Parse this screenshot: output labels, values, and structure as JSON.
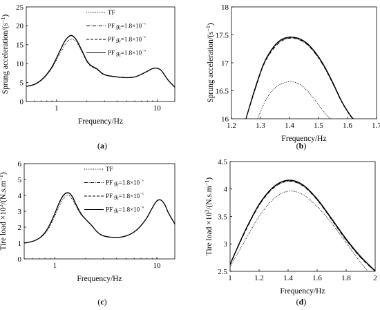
{
  "colors": {
    "line": "#000000",
    "background": "#ffffff"
  },
  "chart_data": [
    {
      "id": "a",
      "panel_label": "(a)",
      "type": "line",
      "xscale": "log",
      "xlim": [
        0.5,
        15
      ],
      "ylim": [
        0,
        25
      ],
      "xticks": [
        1,
        10
      ],
      "xticklabels": [
        "1",
        "10"
      ],
      "yticks": [
        0,
        5,
        10,
        15,
        20,
        25
      ],
      "yticklabels": [
        "0",
        "5",
        "10",
        "15",
        "20",
        "25"
      ],
      "xlabel": "Frequency/Hz",
      "ylabel": "Sprung acceleration/(s⁻¹)",
      "legend": "top-right",
      "series": [
        {
          "name": "TF",
          "style": "dotted",
          "x": [
            0.5,
            0.6,
            0.7,
            0.8,
            0.9,
            1.0,
            1.1,
            1.2,
            1.3,
            1.4,
            1.5,
            1.6,
            1.8,
            2.0,
            2.2,
            2.5,
            3.0,
            4.0,
            5.0,
            6.0,
            7.0,
            8.0,
            9.0,
            10.0,
            11.0,
            12.0,
            13.0,
            15.0
          ],
          "y": [
            4.0,
            4.5,
            5.5,
            7.0,
            8.8,
            11.0,
            13.0,
            14.8,
            16.0,
            16.5,
            16.3,
            15.5,
            13.0,
            10.5,
            9.3,
            8.5,
            7.0,
            6.5,
            6.3,
            6.5,
            7.2,
            8.0,
            8.7,
            8.8,
            8.2,
            6.8,
            5.5,
            3.8
          ]
        },
        {
          "name": "PF g_f=1.8×10⁻⁶",
          "style": "dashdot",
          "x": [
            0.5,
            0.6,
            0.7,
            0.8,
            0.9,
            1.0,
            1.1,
            1.2,
            1.3,
            1.4,
            1.5,
            1.6,
            1.8,
            2.0,
            2.2,
            2.5,
            3.0,
            4.0,
            5.0,
            6.0,
            7.0,
            8.0,
            9.0,
            10.0,
            11.0,
            12.0,
            13.0,
            15.0
          ],
          "y": [
            4.0,
            4.5,
            5.6,
            7.2,
            9.1,
            11.5,
            13.8,
            15.8,
            17.0,
            17.4,
            17.0,
            16.0,
            13.3,
            10.8,
            9.5,
            8.7,
            7.1,
            6.5,
            6.3,
            6.5,
            7.2,
            8.0,
            8.7,
            8.8,
            8.2,
            6.8,
            5.5,
            3.8
          ]
        },
        {
          "name": "PF g_f=1.8×10⁻⁵",
          "style": "dashed",
          "x": [
            0.5,
            0.6,
            0.7,
            0.8,
            0.9,
            1.0,
            1.1,
            1.2,
            1.3,
            1.4,
            1.5,
            1.6,
            1.8,
            2.0,
            2.2,
            2.5,
            3.0,
            4.0,
            5.0,
            6.0,
            7.0,
            8.0,
            9.0,
            10.0,
            11.0,
            12.0,
            13.0,
            15.0
          ],
          "y": [
            4.0,
            4.5,
            5.6,
            7.2,
            9.1,
            11.5,
            13.8,
            15.8,
            17.0,
            17.45,
            17.0,
            16.0,
            13.3,
            10.8,
            9.5,
            8.7,
            7.1,
            6.5,
            6.3,
            6.5,
            7.2,
            8.0,
            8.7,
            8.8,
            8.2,
            6.8,
            5.5,
            3.8
          ]
        },
        {
          "name": "PF g_f=1.8×10⁻⁴",
          "style": "solid",
          "x": [
            0.5,
            0.6,
            0.7,
            0.8,
            0.9,
            1.0,
            1.1,
            1.2,
            1.3,
            1.4,
            1.5,
            1.6,
            1.8,
            2.0,
            2.2,
            2.5,
            3.0,
            4.0,
            5.0,
            6.0,
            7.0,
            8.0,
            9.0,
            10.0,
            11.0,
            12.0,
            13.0,
            15.0
          ],
          "y": [
            4.0,
            4.5,
            5.6,
            7.2,
            9.1,
            11.5,
            13.8,
            15.8,
            17.0,
            17.46,
            17.0,
            16.0,
            13.3,
            10.8,
            9.5,
            8.7,
            7.1,
            6.5,
            6.3,
            6.5,
            7.2,
            8.0,
            8.7,
            8.8,
            8.2,
            6.8,
            5.5,
            3.8
          ]
        }
      ]
    },
    {
      "id": "b",
      "panel_label": "(b)",
      "type": "line",
      "xscale": "linear",
      "xlim": [
        1.2,
        1.7
      ],
      "ylim": [
        16,
        18
      ],
      "xticks": [
        1.2,
        1.3,
        1.4,
        1.5,
        1.6,
        1.7
      ],
      "xticklabels": [
        "1.2",
        "1.3",
        "1.4",
        "1.5",
        "1.6",
        "1.7"
      ],
      "yticks": [
        16,
        16.5,
        17,
        17.5,
        18
      ],
      "yticklabels": [
        "16",
        "16.5",
        "17",
        "17.5",
        "18"
      ],
      "xlabel": "Frequency/Hz",
      "ylabel": "Sprung acceleration/(s⁻¹)",
      "series": [
        {
          "name": "TF",
          "style": "dotted",
          "x": [
            1.29,
            1.32,
            1.35,
            1.38,
            1.41,
            1.44,
            1.47,
            1.5,
            1.53,
            1.545
          ],
          "y": [
            16.0,
            16.35,
            16.55,
            16.64,
            16.66,
            16.6,
            16.45,
            16.25,
            16.05,
            16.0
          ]
        },
        {
          "name": "PF g_f=1.8×10⁻⁶",
          "style": "dashdot",
          "x": [
            1.25,
            1.28,
            1.31,
            1.34,
            1.37,
            1.4,
            1.43,
            1.46,
            1.49,
            1.52,
            1.55,
            1.58,
            1.61,
            1.62
          ],
          "y": [
            16.0,
            16.5,
            16.95,
            17.22,
            17.38,
            17.44,
            17.42,
            17.33,
            17.16,
            16.92,
            16.62,
            16.3,
            16.05,
            16.0
          ]
        },
        {
          "name": "PF g_f=1.8×10⁻⁵",
          "style": "dashed",
          "x": [
            1.25,
            1.28,
            1.31,
            1.34,
            1.37,
            1.4,
            1.43,
            1.46,
            1.49,
            1.52,
            1.55,
            1.58,
            1.61,
            1.62
          ],
          "y": [
            16.0,
            16.5,
            16.96,
            17.24,
            17.4,
            17.45,
            17.43,
            17.34,
            17.17,
            16.93,
            16.63,
            16.3,
            16.05,
            16.0
          ]
        },
        {
          "name": "PF g_f=1.8×10⁻⁴",
          "style": "solid",
          "x": [
            1.25,
            1.28,
            1.31,
            1.34,
            1.37,
            1.4,
            1.43,
            1.46,
            1.49,
            1.52,
            1.55,
            1.58,
            1.61,
            1.62
          ],
          "y": [
            16.0,
            16.52,
            16.97,
            17.25,
            17.41,
            17.46,
            17.44,
            17.35,
            17.18,
            16.94,
            16.64,
            16.31,
            16.06,
            16.0
          ]
        }
      ]
    },
    {
      "id": "c",
      "panel_label": "(c)",
      "type": "line",
      "xscale": "log",
      "xlim": [
        0.5,
        15
      ],
      "ylim": [
        0,
        6
      ],
      "xticks": [
        1,
        10
      ],
      "xticklabels": [
        "1",
        "10"
      ],
      "yticks": [
        0,
        1,
        2,
        3,
        4,
        5,
        6
      ],
      "yticklabels": [
        "0",
        "1",
        "2",
        "3",
        "4",
        "5",
        "6"
      ],
      "xlabel": "Frequency/Hz",
      "ylabel": "Tire load ×10³/(N.s.m⁻¹)",
      "legend": "top-right",
      "series": [
        {
          "name": "TF",
          "style": "dotted",
          "x": [
            0.5,
            0.6,
            0.7,
            0.8,
            0.9,
            1.0,
            1.1,
            1.2,
            1.3,
            1.4,
            1.5,
            1.6,
            1.8,
            2.0,
            2.3,
            2.6,
            3.0,
            4.0,
            5.0,
            6.0,
            7.0,
            8.0,
            9.0,
            10.0,
            11.0,
            12.0,
            13.0,
            15.0
          ],
          "y": [
            1.0,
            1.1,
            1.3,
            1.6,
            2.1,
            2.7,
            3.3,
            3.75,
            4.0,
            3.95,
            3.7,
            3.35,
            2.8,
            2.5,
            2.1,
            1.7,
            1.45,
            1.35,
            1.45,
            1.7,
            2.1,
            2.6,
            3.2,
            3.65,
            3.7,
            3.4,
            2.9,
            2.2
          ]
        },
        {
          "name": "PF g_f=1.8×10⁻⁶",
          "style": "dashdot",
          "x": [
            0.5,
            0.6,
            0.7,
            0.8,
            0.9,
            1.0,
            1.1,
            1.2,
            1.3,
            1.4,
            1.5,
            1.6,
            1.8,
            2.0,
            2.3,
            2.6,
            3.0,
            4.0,
            5.0,
            6.0,
            7.0,
            8.0,
            9.0,
            10.0,
            11.0,
            12.0,
            13.0,
            15.0
          ],
          "y": [
            1.0,
            1.1,
            1.3,
            1.65,
            2.2,
            2.85,
            3.5,
            3.95,
            4.14,
            4.1,
            3.85,
            3.45,
            2.85,
            2.5,
            2.1,
            1.7,
            1.45,
            1.35,
            1.45,
            1.7,
            2.1,
            2.6,
            3.2,
            3.65,
            3.7,
            3.4,
            2.9,
            2.2
          ]
        },
        {
          "name": "PF g_f=1.8×10⁻⁵",
          "style": "dashed",
          "x": [
            0.5,
            0.6,
            0.7,
            0.8,
            0.9,
            1.0,
            1.1,
            1.2,
            1.3,
            1.4,
            1.5,
            1.6,
            1.8,
            2.0,
            2.3,
            2.6,
            3.0,
            4.0,
            5.0,
            6.0,
            7.0,
            8.0,
            9.0,
            10.0,
            11.0,
            12.0,
            13.0,
            15.0
          ],
          "y": [
            1.0,
            1.1,
            1.3,
            1.65,
            2.2,
            2.86,
            3.51,
            3.96,
            4.15,
            4.11,
            3.86,
            3.46,
            2.85,
            2.5,
            2.1,
            1.7,
            1.45,
            1.35,
            1.45,
            1.7,
            2.1,
            2.6,
            3.2,
            3.65,
            3.7,
            3.4,
            2.9,
            2.2
          ]
        },
        {
          "name": "PF g_f=1.8×10⁻⁴",
          "style": "solid",
          "x": [
            0.5,
            0.6,
            0.7,
            0.8,
            0.9,
            1.0,
            1.1,
            1.2,
            1.3,
            1.4,
            1.5,
            1.6,
            1.8,
            2.0,
            2.3,
            2.6,
            3.0,
            4.0,
            5.0,
            6.0,
            7.0,
            8.0,
            9.0,
            10.0,
            11.0,
            12.0,
            13.0,
            15.0
          ],
          "y": [
            1.0,
            1.1,
            1.3,
            1.66,
            2.21,
            2.87,
            3.52,
            3.97,
            4.16,
            4.12,
            3.87,
            3.47,
            2.86,
            2.5,
            2.1,
            1.7,
            1.45,
            1.35,
            1.45,
            1.7,
            2.1,
            2.6,
            3.2,
            3.65,
            3.7,
            3.4,
            2.9,
            2.2
          ]
        }
      ]
    },
    {
      "id": "d",
      "panel_label": "(d)",
      "type": "line",
      "xscale": "linear",
      "xlim": [
        1,
        2
      ],
      "ylim": [
        2.5,
        4.5
      ],
      "xticks": [
        1,
        1.2,
        1.4,
        1.6,
        1.8,
        2
      ],
      "xticklabels": [
        "1",
        "1.2",
        "1.4",
        "1.6",
        "1.8",
        "2"
      ],
      "yticks": [
        2.5,
        3,
        3.5,
        4,
        4.5
      ],
      "yticklabels": [
        "2.5",
        "3",
        "3.5",
        "4",
        "4.5"
      ],
      "xlabel": "Frequency/Hz",
      "ylabel": "Tire load ×10³/(N.s.m⁻¹)",
      "series": [
        {
          "name": "TF",
          "style": "dotted",
          "x": [
            1.0,
            1.1,
            1.2,
            1.3,
            1.4,
            1.5,
            1.6,
            1.7,
            1.8,
            1.9,
            1.95
          ],
          "y": [
            2.58,
            3.05,
            3.5,
            3.82,
            3.96,
            3.9,
            3.68,
            3.38,
            3.02,
            2.66,
            2.5
          ]
        },
        {
          "name": "PF g_f=1.8×10⁻⁶",
          "style": "dashdot",
          "x": [
            1.0,
            1.1,
            1.2,
            1.3,
            1.4,
            1.5,
            1.6,
            1.7,
            1.8,
            1.9,
            2.0
          ],
          "y": [
            2.62,
            3.2,
            3.7,
            4.02,
            4.14,
            4.06,
            3.8,
            3.44,
            3.07,
            2.75,
            2.5
          ]
        },
        {
          "name": "PF g_f=1.8×10⁻⁵",
          "style": "dashed",
          "x": [
            1.0,
            1.1,
            1.2,
            1.3,
            1.4,
            1.5,
            1.6,
            1.7,
            1.8,
            1.9,
            2.0
          ],
          "y": [
            2.62,
            3.21,
            3.71,
            4.03,
            4.15,
            4.07,
            3.81,
            3.45,
            3.08,
            2.76,
            2.5
          ]
        },
        {
          "name": "PF g_f=1.8×10⁻⁴",
          "style": "solid",
          "x": [
            1.0,
            1.1,
            1.2,
            1.3,
            1.4,
            1.5,
            1.6,
            1.7,
            1.8,
            1.9,
            2.0
          ],
          "y": [
            2.63,
            3.22,
            3.72,
            4.04,
            4.16,
            4.08,
            3.82,
            3.46,
            3.09,
            2.77,
            2.51
          ]
        }
      ]
    }
  ]
}
